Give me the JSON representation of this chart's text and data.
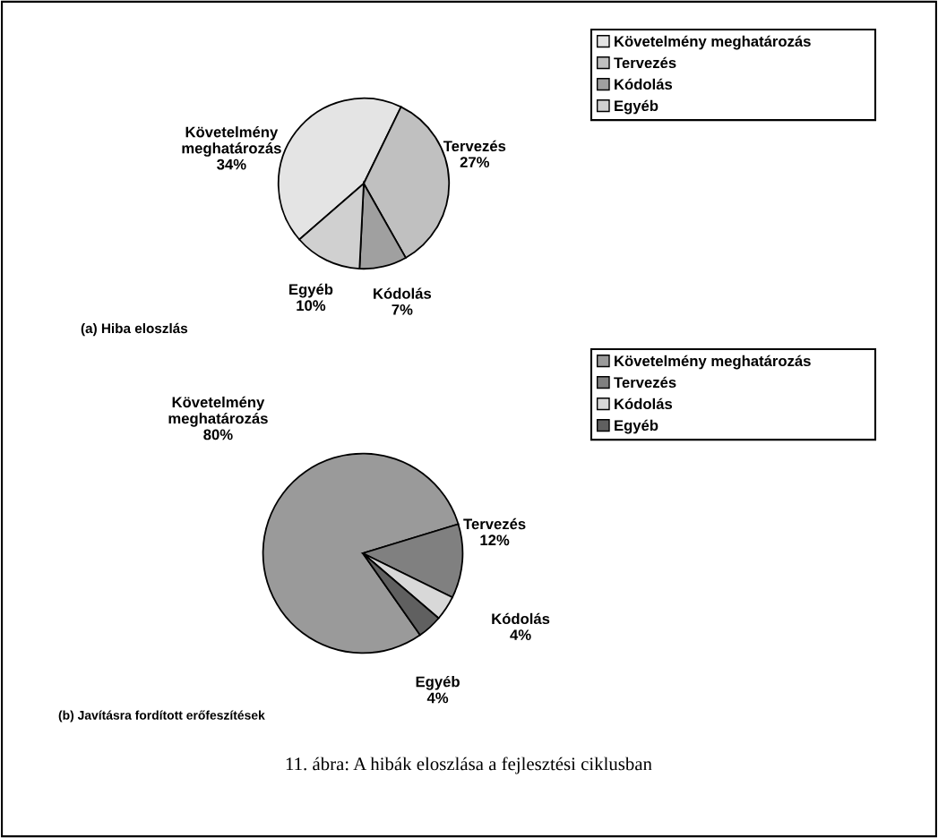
{
  "chart_data": [
    {
      "type": "pie",
      "title": "(a) Hiba eloszlás",
      "categories": [
        "Követelmény meghatározás",
        "Tervezés",
        "Kódolás",
        "Egyéb"
      ],
      "values": [
        34,
        27,
        7,
        10
      ],
      "value_labels": [
        "34%",
        "27%",
        "7%",
        "10%"
      ],
      "colors": [
        "#e4e4e4",
        "#c0c0c0",
        "#a0a0a0",
        "#d0d0d0"
      ],
      "legend": "top right"
    },
    {
      "type": "pie",
      "title": "(b) Javításra fordított erőfeszítések",
      "categories": [
        "Követelmény meghatározás",
        "Tervezés",
        "Kódolás",
        "Egyéb"
      ],
      "values": [
        80,
        12,
        4,
        4
      ],
      "value_labels": [
        "80%",
        "12%",
        "4%",
        "4%"
      ],
      "colors": [
        "#9a9a9a",
        "#808080",
        "#d8d8d8",
        "#606060"
      ],
      "legend": "top right",
      "annotations": [
        "11. ábra: A hibák eloszlása a fejlesztési ciklusban"
      ]
    }
  ]
}
